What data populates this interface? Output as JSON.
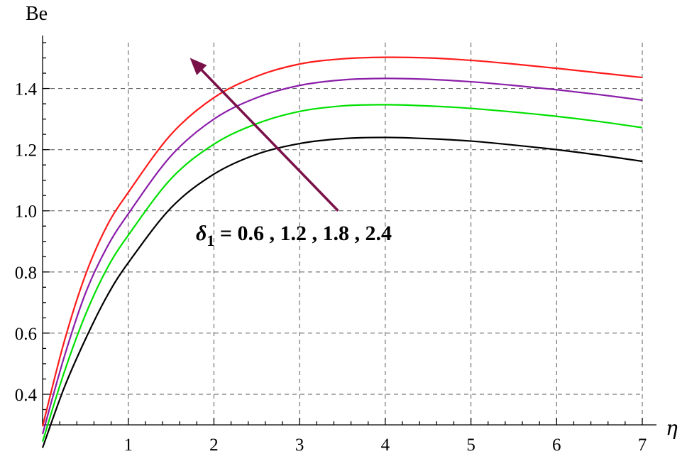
{
  "chart_data": {
    "type": "line",
    "ylabel": "Be",
    "xlabel": "η",
    "xlim": [
      0,
      7
    ],
    "ylim": [
      0.3,
      1.55
    ],
    "x_ticks": [
      1,
      2,
      3,
      4,
      5,
      6,
      7
    ],
    "y_ticks": [
      0.4,
      0.6,
      0.8,
      1.0,
      1.2,
      1.4
    ],
    "y_tick_labels": [
      "0.4",
      "0.6",
      "0.8",
      "1.0",
      "1.2",
      "1.4"
    ],
    "grid": true,
    "annotation": {
      "symbol": "δ",
      "subscript": "1",
      "text": " = 0.6 , 1.2 , 1.8 , 2.4",
      "arrow": "increasing"
    },
    "series": [
      {
        "color": "#000000",
        "x": [
          0,
          0.25,
          0.5,
          0.75,
          1,
          1.5,
          2,
          2.5,
          3,
          3.5,
          4,
          4.5,
          5,
          5.5,
          6,
          6.5,
          7
        ],
        "y": [
          0.225,
          0.42,
          0.58,
          0.72,
          0.83,
          1.01,
          1.12,
          1.185,
          1.22,
          1.236,
          1.24,
          1.236,
          1.228,
          1.215,
          1.2,
          1.182,
          1.162
        ]
      },
      {
        "color": "#00e000",
        "x": [
          0,
          0.25,
          0.5,
          0.75,
          1,
          1.5,
          2,
          2.5,
          3,
          3.5,
          4,
          4.5,
          5,
          5.5,
          6,
          6.5,
          7
        ],
        "y": [
          0.245,
          0.47,
          0.66,
          0.81,
          0.92,
          1.105,
          1.218,
          1.285,
          1.325,
          1.343,
          1.347,
          1.343,
          1.335,
          1.323,
          1.309,
          1.292,
          1.272
        ]
      },
      {
        "color": "#8a1ea8",
        "x": [
          0,
          0.25,
          0.5,
          0.75,
          1,
          1.5,
          2,
          2.5,
          3,
          3.5,
          4,
          4.5,
          5,
          5.5,
          6,
          6.5,
          7
        ],
        "y": [
          0.27,
          0.52,
          0.73,
          0.88,
          0.99,
          1.18,
          1.3,
          1.37,
          1.41,
          1.428,
          1.433,
          1.43,
          1.422,
          1.41,
          1.396,
          1.38,
          1.362
        ]
      },
      {
        "color": "#ff1a1a",
        "x": [
          0,
          0.25,
          0.5,
          0.75,
          1,
          1.5,
          2,
          2.5,
          3,
          3.5,
          4,
          4.5,
          5,
          5.5,
          6,
          6.5,
          7
        ],
        "y": [
          0.295,
          0.57,
          0.79,
          0.95,
          1.06,
          1.25,
          1.37,
          1.44,
          1.48,
          1.497,
          1.502,
          1.5,
          1.492,
          1.48,
          1.466,
          1.451,
          1.436
        ]
      }
    ]
  }
}
